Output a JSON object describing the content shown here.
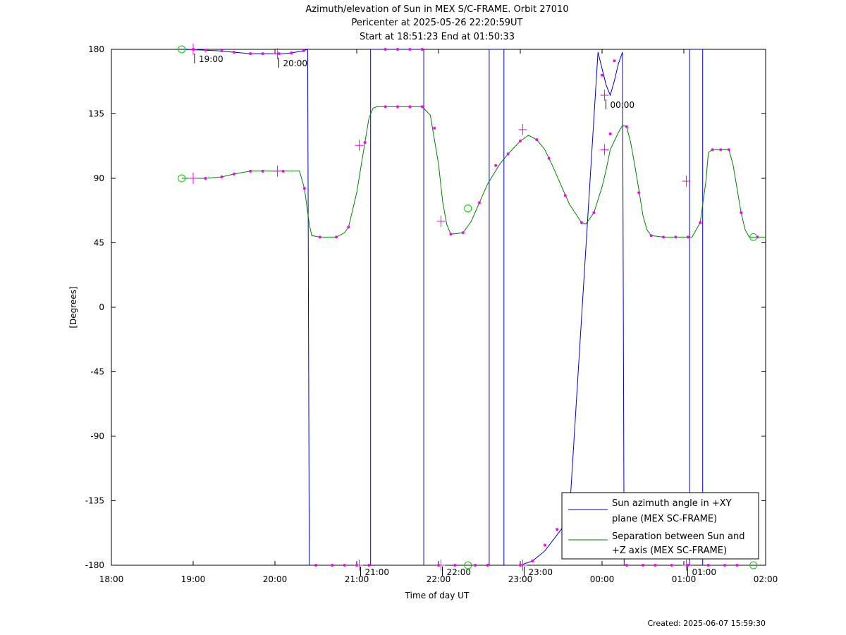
{
  "chart_data": {
    "type": "line",
    "title": "Azimuth/elevation of Sun in MEX S/C-FRAME.  Orbit 27010",
    "subtitle_lines": [
      "Pericenter at 2025-05-26 22:20:59UT",
      "Start at 18:51:23 End at 01:50:33"
    ],
    "xlabel": "Time of day UT",
    "ylabel": "[Degrees]",
    "xlim": [
      18.0,
      26.0
    ],
    "ylim": [
      -180,
      180
    ],
    "x_tick_values": [
      18,
      19,
      20,
      21,
      22,
      23,
      24,
      25,
      26
    ],
    "x_tick_labels": [
      "18:00",
      "19:00",
      "20:00",
      "21:00",
      "22:00",
      "23:00",
      "00:00",
      "01:00",
      "02:00"
    ],
    "y_tick_values": [
      180,
      135,
      90,
      45,
      0,
      -45,
      -90,
      -135,
      -180
    ],
    "y_tick_labels": [
      "180",
      "135",
      "90",
      "45",
      "0",
      "-45",
      "-90",
      "-135",
      "-180"
    ],
    "legend_position": "bottom-right",
    "colors": {
      "azimuth": "#0000cc",
      "separation": "#008000",
      "markers": "#ff00ff",
      "endpoints": "#00cc00"
    },
    "series": [
      {
        "name": "Sun azimuth angle in +XY plane (MEX SC-FRAME)",
        "legend_lines": [
          "Sun azimuth angle in +XY",
          "plane (MEX SC-FRAME)"
        ],
        "segments": [
          [
            [
              18.86,
              180
            ],
            [
              19.1,
              179.5
            ],
            [
              19.3,
              179
            ],
            [
              19.5,
              178
            ],
            [
              19.7,
              177
            ],
            [
              19.9,
              177
            ],
            [
              20.1,
              177
            ],
            [
              20.2,
              177.5
            ],
            [
              20.35,
              179
            ],
            [
              20.4,
              180
            ]
          ],
          [
            [
              20.42,
              -180
            ],
            [
              21.17,
              -180
            ]
          ],
          [
            [
              21.17,
              180
            ],
            [
              21.82,
              180
            ]
          ],
          [
            [
              21.82,
              -180
            ],
            [
              22.62,
              -180
            ]
          ],
          [
            [
              22.62,
              180
            ],
            [
              22.8,
              180
            ]
          ],
          [
            [
              22.8,
              -180
            ],
            [
              23.0,
              -180
            ],
            [
              23.15,
              -177
            ],
            [
              23.3,
              -170
            ],
            [
              23.5,
              -155
            ],
            [
              23.6,
              -145
            ]
          ],
          [
            [
              23.95,
              178
            ],
            [
              24.05,
              155
            ],
            [
              24.1,
              148
            ],
            [
              24.15,
              158
            ],
            [
              24.2,
              170
            ],
            [
              24.25,
              178
            ]
          ],
          [
            [
              24.27,
              -180
            ],
            [
              25.07,
              -180
            ]
          ],
          [
            [
              25.07,
              180
            ],
            [
              25.23,
              180
            ]
          ],
          [
            [
              25.23,
              -180
            ],
            [
              25.85,
              -180
            ]
          ]
        ],
        "markers": [
          [
            19.0,
            180
          ],
          [
            19.15,
            179.5
          ],
          [
            19.35,
            179
          ],
          [
            19.5,
            178
          ],
          [
            19.7,
            177
          ],
          [
            19.85,
            177
          ],
          [
            20.05,
            177
          ],
          [
            20.2,
            177.5
          ],
          [
            20.35,
            179
          ],
          [
            20.5,
            -180
          ],
          [
            20.7,
            -180
          ],
          [
            20.85,
            -180
          ],
          [
            21.0,
            -180
          ],
          [
            21.15,
            -180
          ],
          [
            21.35,
            180
          ],
          [
            21.5,
            180
          ],
          [
            21.65,
            180
          ],
          [
            21.8,
            180
          ],
          [
            22.0,
            -180
          ],
          [
            22.2,
            -180
          ],
          [
            22.45,
            -180
          ],
          [
            22.6,
            -180
          ],
          [
            23.0,
            -180
          ],
          [
            23.15,
            -177
          ],
          [
            23.3,
            -166
          ],
          [
            23.45,
            -155
          ],
          [
            23.55,
            -147
          ],
          [
            24.0,
            162
          ],
          [
            24.15,
            172
          ],
          [
            24.3,
            -180
          ],
          [
            24.5,
            -180
          ],
          [
            24.65,
            -180
          ],
          [
            24.85,
            -180
          ],
          [
            25.05,
            -180
          ],
          [
            25.3,
            -180
          ],
          [
            25.5,
            -180
          ],
          [
            25.65,
            -180
          ]
        ],
        "crosses": [
          [
            19.0,
            180
          ],
          [
            20.03,
            177
          ],
          [
            21.03,
            -180
          ],
          [
            22.03,
            -180
          ],
          [
            23.03,
            -180
          ],
          [
            24.03,
            148
          ],
          [
            25.03,
            -180
          ]
        ],
        "endpoints": [
          [
            18.86,
            180
          ],
          [
            22.36,
            -180
          ],
          [
            25.85,
            -180
          ]
        ]
      },
      {
        "name": "Separation between Sun and +Z axis (MEX SC-FRAME)",
        "legend_lines": [
          "Separation between Sun and",
          "+Z axis (MEX SC-FRAME)"
        ],
        "points": [
          [
            18.86,
            90
          ],
          [
            19.15,
            90
          ],
          [
            19.35,
            91
          ],
          [
            19.5,
            93
          ],
          [
            19.7,
            95
          ],
          [
            19.85,
            95
          ],
          [
            20.1,
            95
          ],
          [
            20.3,
            95
          ],
          [
            20.36,
            83
          ],
          [
            20.42,
            58
          ],
          [
            20.45,
            50
          ],
          [
            20.55,
            49
          ],
          [
            20.75,
            49
          ],
          [
            20.85,
            52
          ],
          [
            20.9,
            56
          ],
          [
            21.0,
            80
          ],
          [
            21.1,
            115
          ],
          [
            21.15,
            132
          ],
          [
            21.2,
            139
          ],
          [
            21.25,
            140
          ],
          [
            21.35,
            140
          ],
          [
            21.5,
            140
          ],
          [
            21.65,
            140
          ],
          [
            21.8,
            140
          ],
          [
            21.9,
            134
          ],
          [
            22.0,
            100
          ],
          [
            22.05,
            74
          ],
          [
            22.1,
            58
          ],
          [
            22.15,
            51
          ],
          [
            22.3,
            52
          ],
          [
            22.4,
            60
          ],
          [
            22.5,
            73
          ],
          [
            22.6,
            86
          ],
          [
            22.75,
            100
          ],
          [
            22.85,
            107
          ],
          [
            23.0,
            116
          ],
          [
            23.1,
            120
          ],
          [
            23.2,
            117
          ],
          [
            23.3,
            110
          ],
          [
            23.4,
            98
          ],
          [
            23.5,
            85
          ],
          [
            23.6,
            72
          ],
          [
            23.75,
            59
          ],
          [
            23.8,
            58
          ],
          [
            23.9,
            66
          ],
          [
            24.0,
            84
          ],
          [
            24.05,
            96
          ],
          [
            24.1,
            110
          ],
          [
            24.2,
            122
          ],
          [
            24.25,
            127
          ],
          [
            24.3,
            126
          ],
          [
            24.35,
            115
          ],
          [
            24.4,
            99
          ],
          [
            24.45,
            82
          ],
          [
            24.5,
            64
          ],
          [
            24.55,
            54
          ],
          [
            24.6,
            50
          ],
          [
            24.75,
            49
          ],
          [
            25.0,
            49
          ],
          [
            25.1,
            49
          ],
          [
            25.2,
            59
          ],
          [
            25.27,
            88
          ],
          [
            25.3,
            108
          ],
          [
            25.35,
            110
          ],
          [
            25.45,
            110
          ],
          [
            25.55,
            110
          ],
          [
            25.6,
            100
          ],
          [
            25.7,
            66
          ],
          [
            25.75,
            54
          ],
          [
            25.8,
            49
          ],
          [
            25.9,
            49
          ],
          [
            26.0,
            49
          ]
        ],
        "markers": [
          [
            19.15,
            90
          ],
          [
            19.35,
            91
          ],
          [
            19.5,
            93
          ],
          [
            19.7,
            95
          ],
          [
            19.85,
            95
          ],
          [
            20.1,
            95
          ],
          [
            20.36,
            83
          ],
          [
            20.55,
            49
          ],
          [
            20.75,
            49
          ],
          [
            20.9,
            56
          ],
          [
            21.1,
            115
          ],
          [
            21.35,
            140
          ],
          [
            21.5,
            140
          ],
          [
            21.65,
            140
          ],
          [
            21.8,
            140
          ],
          [
            21.95,
            125
          ],
          [
            22.15,
            51
          ],
          [
            22.3,
            52
          ],
          [
            22.5,
            73
          ],
          [
            22.7,
            99
          ],
          [
            22.85,
            107
          ],
          [
            23.0,
            116
          ],
          [
            23.2,
            117
          ],
          [
            23.35,
            104
          ],
          [
            23.55,
            78
          ],
          [
            23.75,
            59
          ],
          [
            23.9,
            66
          ],
          [
            24.1,
            121
          ],
          [
            24.3,
            126
          ],
          [
            24.45,
            80
          ],
          [
            24.6,
            50
          ],
          [
            24.75,
            49
          ],
          [
            24.9,
            49
          ],
          [
            25.05,
            49
          ],
          [
            25.2,
            59
          ],
          [
            25.35,
            110
          ],
          [
            25.45,
            110
          ],
          [
            25.55,
            110
          ],
          [
            25.7,
            66
          ],
          [
            25.9,
            49
          ]
        ],
        "crosses": [
          [
            19.0,
            90
          ],
          [
            20.03,
            95
          ],
          [
            21.03,
            113
          ],
          [
            22.03,
            60
          ],
          [
            23.03,
            124
          ],
          [
            24.03,
            110
          ],
          [
            25.03,
            88
          ]
        ],
        "endpoints": [
          [
            18.86,
            90
          ],
          [
            22.36,
            69
          ],
          [
            25.85,
            49
          ]
        ]
      }
    ],
    "annotations": [
      {
        "text": "19:00",
        "x": 19.0,
        "y": 180
      },
      {
        "text": "20:00",
        "x": 20.03,
        "y": 177
      },
      {
        "text": "21:00",
        "x": 21.03,
        "y": -180
      },
      {
        "text": "22:00",
        "x": 22.03,
        "y": -180
      },
      {
        "text": "23:00",
        "x": 23.03,
        "y": -180
      },
      {
        "text": "00:00",
        "x": 24.03,
        "y": 148
      },
      {
        "text": "01:00",
        "x": 25.03,
        "y": -180
      }
    ]
  },
  "footer": {
    "created": "Created: 2025-06-07 15:59:30"
  }
}
